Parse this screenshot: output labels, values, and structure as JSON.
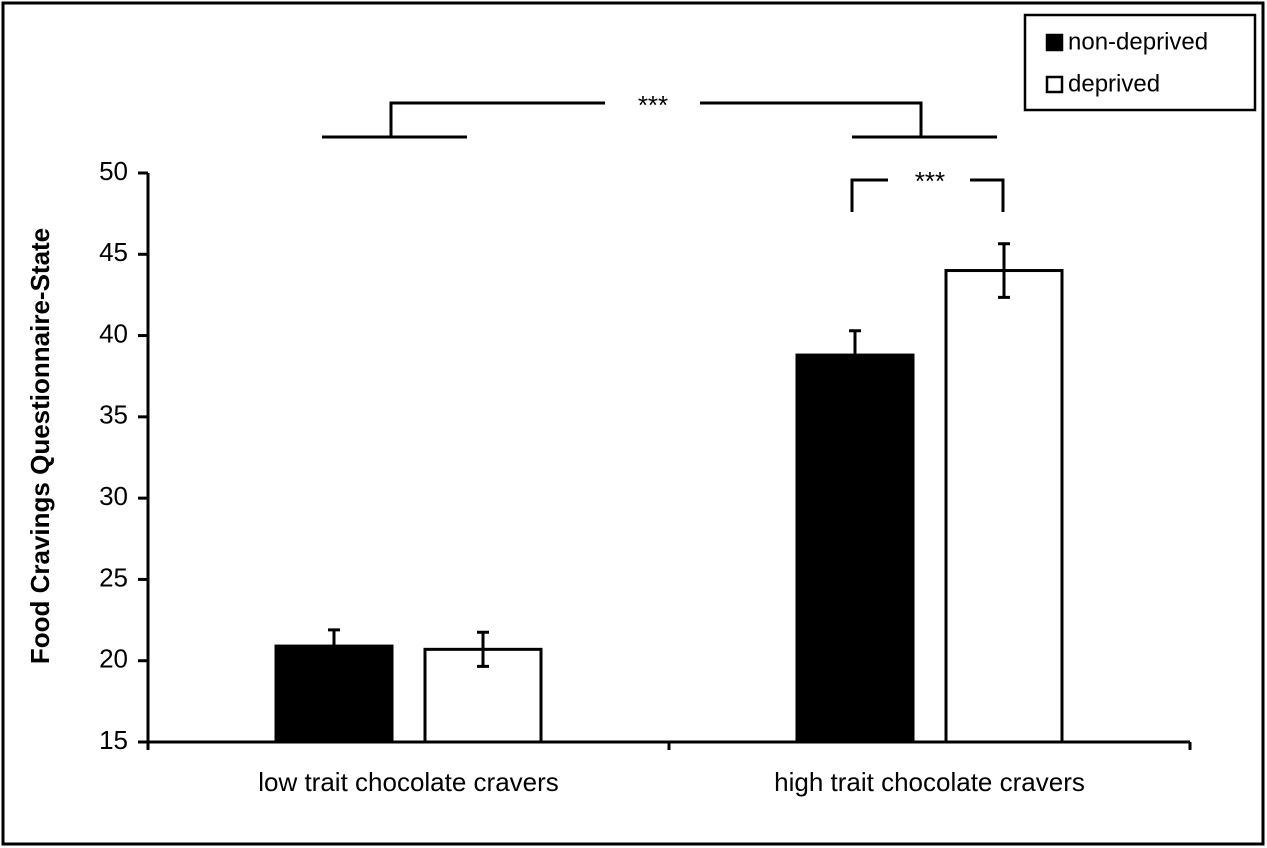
{
  "chart_data": {
    "type": "bar",
    "y_label": "Food Cravings Questionnaire-State",
    "categories": [
      "low trait chocolate cravers",
      "high trait chocolate cravers"
    ],
    "series": [
      {
        "name": "non-deprived",
        "color": "#000000",
        "values": [
          20.9,
          38.8
        ],
        "errors": [
          1.0,
          1.5
        ]
      },
      {
        "name": "deprived",
        "color": "#ffffff",
        "values": [
          20.7,
          44.0
        ],
        "errors": [
          1.05,
          1.65
        ]
      }
    ],
    "ylim": [
      15,
      50
    ],
    "yticks": [
      15,
      20,
      25,
      30,
      35,
      40,
      45,
      50
    ],
    "grid": false,
    "legend": "top-right",
    "annotations": [
      "***",
      "***"
    ]
  }
}
